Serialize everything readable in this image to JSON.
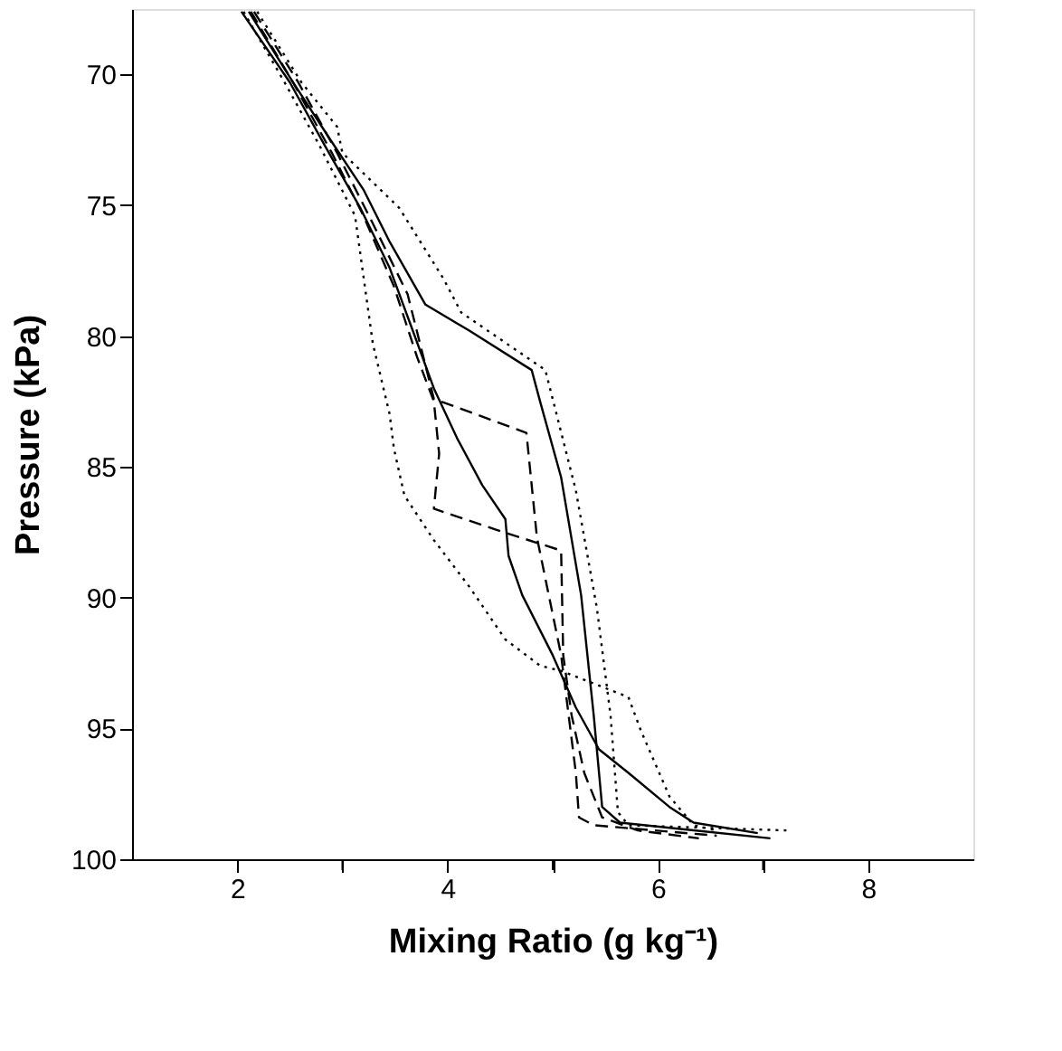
{
  "chart_data": {
    "type": "line",
    "xlabel": "Mixing Ratio (g kg⁻¹)",
    "ylabel": "Pressure (kPa)",
    "xlim": [
      1,
      9
    ],
    "ylim": [
      100,
      67.5
    ],
    "xticks": [
      2,
      {
        "value": 3,
        "label": null
      },
      4,
      {
        "value": 5,
        "label": null
      },
      6,
      {
        "value": 7,
        "label": null
      },
      8
    ],
    "yticks": [
      70,
      75,
      80,
      85,
      90,
      95,
      100
    ],
    "grid": false,
    "marker": "none",
    "series": [
      {
        "color": "#000000",
        "line_style": "dotted",
        "x": [
          2.19,
          2.61,
          2.95,
          3.0,
          3.54,
          3.96,
          4.13,
          4.93,
          5.22,
          5.42,
          5.55,
          5.62,
          5.72,
          7.24
        ],
        "values": [
          67.6,
          70.3,
          72.0,
          73.0,
          75.1,
          77.8,
          79.1,
          81.3,
          85.9,
          90.4,
          94.5,
          98.2,
          98.7,
          98.9
        ]
      },
      {
        "color": "#000000",
        "line_style": "solid",
        "x": [
          2.11,
          2.53,
          2.87,
          3.2,
          3.45,
          3.79,
          4.21,
          4.8,
          4.88,
          5.08,
          5.27,
          5.39,
          5.47,
          5.64,
          7.07
        ],
        "values": [
          67.6,
          70.3,
          72.4,
          74.4,
          76.4,
          78.8,
          79.8,
          81.3,
          82.5,
          85.4,
          89.9,
          94.5,
          98.0,
          98.6,
          99.2
        ]
      },
      {
        "color": "#000000",
        "line_style": "dashed",
        "x": [
          2.16,
          2.58,
          2.95,
          3.29,
          3.62,
          3.87,
          4.75,
          4.85,
          5.08,
          5.22,
          5.25,
          5.39,
          6.56
        ],
        "values": [
          67.6,
          70.3,
          73.0,
          75.7,
          78.4,
          82.4,
          83.7,
          87.7,
          92.2,
          96.7,
          98.4,
          98.7,
          99.1
        ]
      },
      {
        "color": "#000000",
        "line_style": "dashed",
        "x": [
          2.13,
          2.53,
          2.9,
          3.2,
          3.49,
          3.71,
          3.87,
          3.92,
          3.87,
          4.46,
          5.08,
          5.1,
          5.18,
          5.3,
          5.47,
          5.81,
          6.39
        ],
        "values": [
          67.6,
          70.3,
          73.0,
          75.4,
          78.1,
          80.8,
          82.5,
          84.5,
          86.6,
          87.4,
          88.2,
          92.2,
          94.5,
          96.7,
          98.4,
          98.9,
          99.2
        ]
      },
      {
        "color": "#000000",
        "line_style": "solid",
        "x": [
          2.04,
          2.5,
          2.83,
          3.17,
          3.45,
          3.67,
          3.87,
          4.09,
          4.33,
          4.55,
          4.58,
          4.71,
          5.0,
          5.22,
          5.44,
          5.72,
          6.11,
          6.34,
          6.95
        ],
        "values": [
          67.6,
          70.3,
          72.7,
          75.1,
          77.4,
          79.8,
          82.0,
          83.9,
          85.7,
          87.0,
          88.4,
          89.9,
          92.2,
          94.2,
          95.8,
          96.7,
          98.0,
          98.6,
          99.0
        ]
      },
      {
        "color": "#000000",
        "line_style": "dotted",
        "x": [
          2.06,
          2.45,
          2.78,
          3.12,
          3.29,
          3.45,
          3.49,
          3.59,
          3.87,
          4.21,
          4.55,
          4.88,
          5.08,
          5.72,
          5.84,
          6.11,
          6.34,
          6.56
        ],
        "values": [
          67.6,
          70.3,
          72.7,
          75.4,
          80.3,
          83.0,
          84.3,
          86.1,
          87.8,
          89.6,
          91.6,
          92.6,
          92.8,
          93.8,
          95.1,
          97.6,
          98.7,
          98.9
        ]
      }
    ]
  }
}
